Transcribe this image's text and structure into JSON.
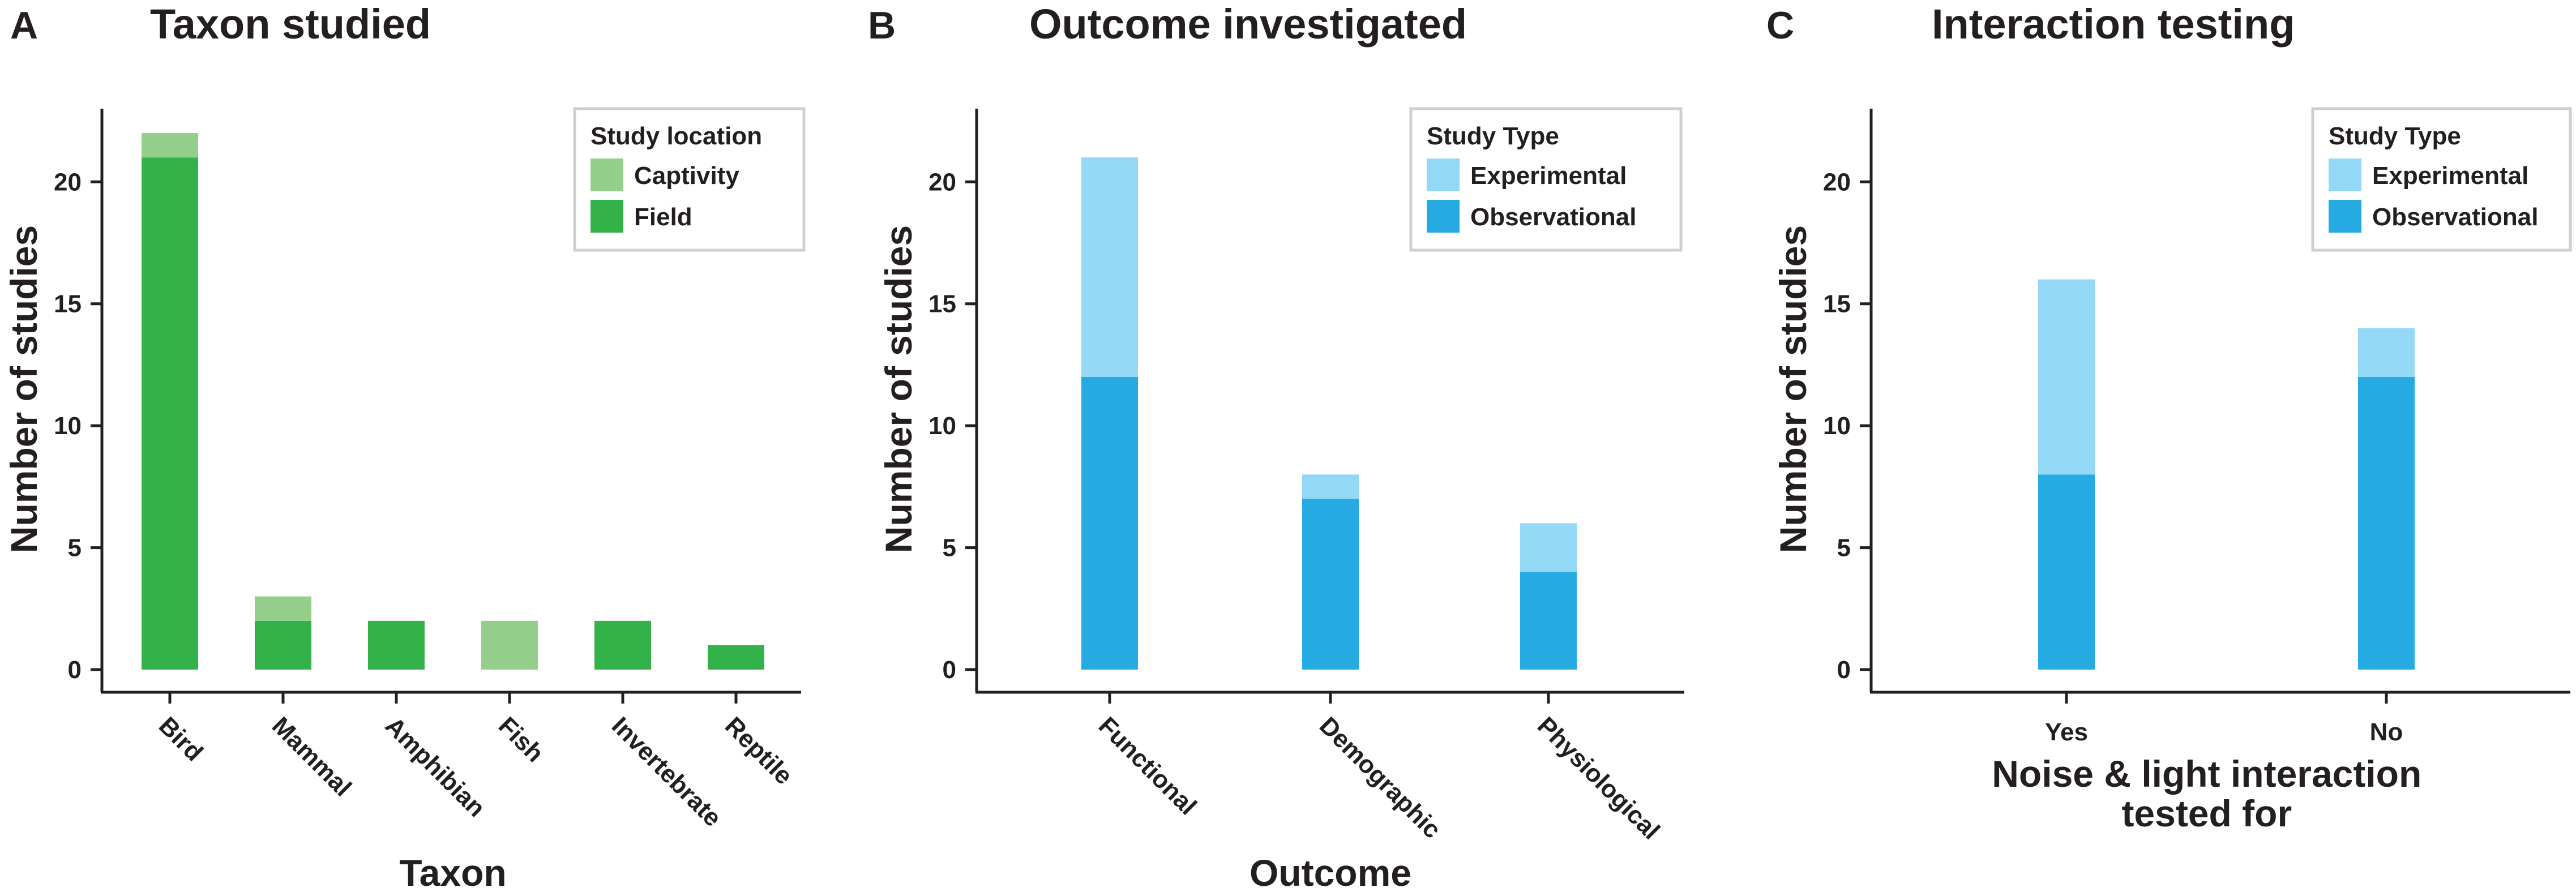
{
  "chart_data": [
    {
      "type": "bar",
      "stacked": true,
      "panel_letter": "A",
      "title": "Taxon studied",
      "xlabel": "Taxon",
      "ylabel": "Number of studies",
      "ylim": [
        0,
        23
      ],
      "yticks": [
        0,
        5,
        10,
        15,
        20
      ],
      "categories": [
        "Bird",
        "Mammal",
        "Amphibian",
        "Fish",
        "Invertebrate",
        "Reptile"
      ],
      "legend_title": "Study location",
      "legend_position": "top-right",
      "series": [
        {
          "name": "Field",
          "values": [
            21,
            2,
            2,
            0,
            2,
            1
          ],
          "color": "#34b24a"
        },
        {
          "name": "Captivity",
          "values": [
            1,
            1,
            0,
            2,
            0,
            0
          ],
          "color": "#93cf8a"
        }
      ]
    },
    {
      "type": "bar",
      "stacked": true,
      "panel_letter": "B",
      "title": "Outcome investigated",
      "xlabel": "Outcome",
      "ylabel": "Number of studies",
      "ylim": [
        0,
        23
      ],
      "yticks": [
        0,
        5,
        10,
        15,
        20
      ],
      "categories": [
        "Functional",
        "Demographic",
        "Physiological"
      ],
      "legend_title": "Study Type",
      "legend_position": "top-right",
      "series": [
        {
          "name": "Observational",
          "values": [
            12,
            7,
            4
          ],
          "color": "#25aae1"
        },
        {
          "name": "Experimental",
          "values": [
            9,
            1,
            2
          ],
          "color": "#93d8f6"
        }
      ]
    },
    {
      "type": "bar",
      "stacked": true,
      "panel_letter": "C",
      "title": "Interaction testing",
      "xlabel_lines": [
        "Noise & light interaction",
        "tested for"
      ],
      "ylabel": "Number of studies",
      "ylim": [
        0,
        23
      ],
      "yticks": [
        0,
        5,
        10,
        15,
        20
      ],
      "categories": [
        "Yes",
        "No"
      ],
      "legend_title": "Study Type",
      "legend_position": "top-right",
      "series": [
        {
          "name": "Observational",
          "values": [
            8,
            12
          ],
          "color": "#25aae1"
        },
        {
          "name": "Experimental",
          "values": [
            8,
            2
          ],
          "color": "#93d8f6"
        }
      ]
    }
  ]
}
